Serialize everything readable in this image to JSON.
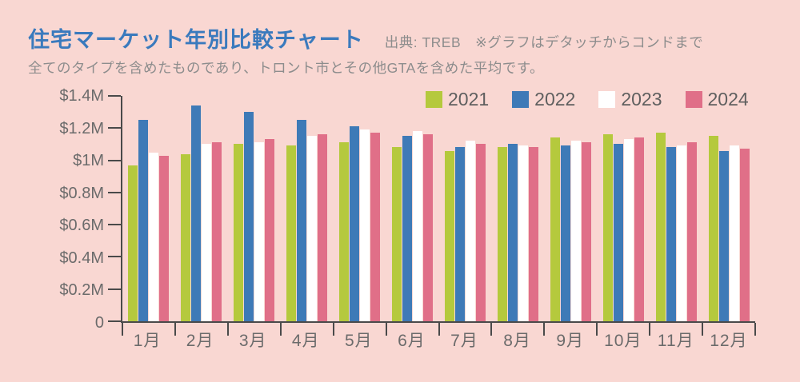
{
  "header": {
    "title": "住宅マーケット年別比較チャート",
    "source_note": "出典: TREB　※グラフはデタッチからコンドまで",
    "subtitle": "全てのタイプを含めたものであり、トロント市とその他GTAを含めた平均です。"
  },
  "colors": {
    "background": "#f9d7d2",
    "title_text": "#3a7abd",
    "note_text": "#8d8d8d",
    "axis_label_text": "#6b6b6b",
    "legend_text": "#5f5f5f",
    "axis_line": "#4a4a4a"
  },
  "chart_data": {
    "type": "bar",
    "title": "住宅マーケット年別比較チャート",
    "xlabel": "",
    "ylabel": "",
    "unit": "$M (average price)",
    "grid": false,
    "legend_position": "top",
    "ylim": [
      0,
      1.4
    ],
    "y_ticks": [
      {
        "label": "$1.4M",
        "value": 1.4
      },
      {
        "label": "$1.2M",
        "value": 1.2
      },
      {
        "label": "$1M",
        "value": 1.0
      },
      {
        "label": "$0.8M",
        "value": 0.8
      },
      {
        "label": "$0.6M",
        "value": 0.6
      },
      {
        "label": "$0.4M",
        "value": 0.4
      },
      {
        "label": "$0.2M",
        "value": 0.2
      },
      {
        "label": "0",
        "value": 0
      }
    ],
    "categories": [
      "1月",
      "2月",
      "3月",
      "4月",
      "5月",
      "6月",
      "7月",
      "8月",
      "9月",
      "10月",
      "11月",
      "12月"
    ],
    "series": [
      {
        "name": "2021",
        "color": "#b5c93d",
        "values": [
          0.97,
          1.04,
          1.1,
          1.09,
          1.11,
          1.08,
          1.06,
          1.08,
          1.14,
          1.16,
          1.17,
          1.15
        ]
      },
      {
        "name": "2022",
        "color": "#3e7ab7",
        "values": [
          1.25,
          1.34,
          1.3,
          1.25,
          1.21,
          1.15,
          1.08,
          1.1,
          1.09,
          1.1,
          1.08,
          1.06
        ]
      },
      {
        "name": "2023",
        "color": "#ffffff",
        "values": [
          1.05,
          1.1,
          1.11,
          1.15,
          1.19,
          1.18,
          1.12,
          1.09,
          1.12,
          1.13,
          1.09,
          1.09
        ]
      },
      {
        "name": "2024",
        "color": "#e06f88",
        "values": [
          1.03,
          1.11,
          1.13,
          1.16,
          1.17,
          1.16,
          1.1,
          1.08,
          1.11,
          1.14,
          1.11,
          1.07
        ]
      }
    ]
  }
}
